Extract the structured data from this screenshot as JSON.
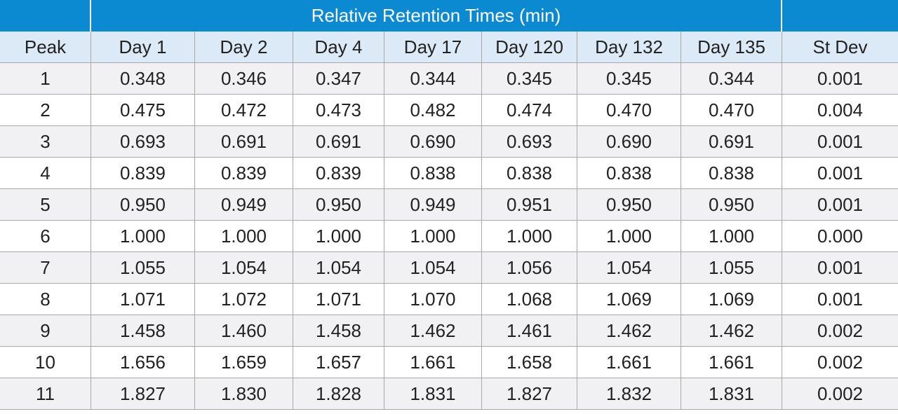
{
  "table": {
    "title": "Relative Retention Times (min)",
    "columns": [
      "Peak",
      "Day 1",
      "Day 2",
      "Day 4",
      "Day 17",
      "Day 120",
      "Day 132",
      "Day 135",
      "St Dev"
    ],
    "rows": [
      [
        "1",
        "0.348",
        "0.346",
        "0.347",
        "0.344",
        "0.345",
        "0.345",
        "0.344",
        "0.001"
      ],
      [
        "2",
        "0.475",
        "0.472",
        "0.473",
        "0.482",
        "0.474",
        "0.470",
        "0.470",
        "0.004"
      ],
      [
        "3",
        "0.693",
        "0.691",
        "0.691",
        "0.690",
        "0.693",
        "0.690",
        "0.691",
        "0.001"
      ],
      [
        "4",
        "0.839",
        "0.839",
        "0.839",
        "0.838",
        "0.838",
        "0.838",
        "0.838",
        "0.001"
      ],
      [
        "5",
        "0.950",
        "0.949",
        "0.950",
        "0.949",
        "0.951",
        "0.950",
        "0.950",
        "0.001"
      ],
      [
        "6",
        "1.000",
        "1.000",
        "1.000",
        "1.000",
        "1.000",
        "1.000",
        "1.000",
        "0.000"
      ],
      [
        "7",
        "1.055",
        "1.054",
        "1.054",
        "1.054",
        "1.056",
        "1.054",
        "1.055",
        "0.001"
      ],
      [
        "8",
        "1.071",
        "1.072",
        "1.071",
        "1.070",
        "1.068",
        "1.069",
        "1.069",
        "0.001"
      ],
      [
        "9",
        "1.458",
        "1.460",
        "1.458",
        "1.462",
        "1.461",
        "1.462",
        "1.462",
        "0.002"
      ],
      [
        "10",
        "1.656",
        "1.659",
        "1.657",
        "1.661",
        "1.658",
        "1.661",
        "1.661",
        "0.002"
      ],
      [
        "11",
        "1.827",
        "1.830",
        "1.828",
        "1.831",
        "1.827",
        "1.832",
        "1.831",
        "0.002"
      ]
    ]
  }
}
